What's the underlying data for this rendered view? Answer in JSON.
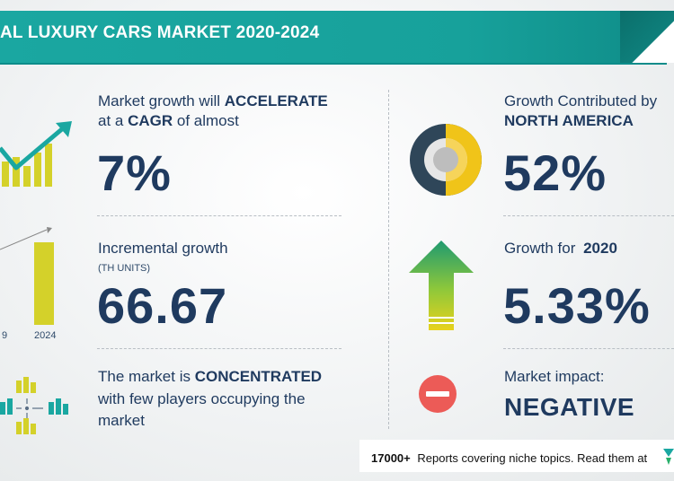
{
  "header": {
    "title": "AL LUXURY CARS MARKET 2020-2024"
  },
  "growth": {
    "line1_text": "Market growth will",
    "line1_emphasis": "ACCELERATE",
    "line2_text": "at a",
    "line2_emphasis": "CAGR",
    "line2_suffix": "of almost",
    "value": "7%"
  },
  "incremental": {
    "label": "Incremental growth",
    "unit": "(TH UNITS)",
    "value": "66.67",
    "axis_labels": [
      "9",
      "2024"
    ]
  },
  "concentration": {
    "line1_text": "The market is",
    "line1_emphasis": "CONCENTRATED",
    "line2": "with few players occupying the",
    "line3": "market"
  },
  "region": {
    "line1": "Growth Contributed by",
    "region_name": "NORTH AMERICA",
    "value": "52%"
  },
  "yoy": {
    "label": "Growth for",
    "year": "2020",
    "value": "5.33%"
  },
  "impact": {
    "label": "Market impact:",
    "value": "NEGATIVE"
  },
  "footer": {
    "count": "17000+",
    "text": "Reports covering niche topics. Read them at"
  },
  "icons": {
    "trend": "trend-chart-icon",
    "bar": "bar-chart-icon",
    "network": "market-network-icon",
    "donut": "donut-chart-icon",
    "arrow": "up-arrow-icon",
    "minus": "minus-circle-icon"
  },
  "colors": {
    "banner": "#17a19b",
    "text": "#1f3a5f",
    "accent_yellow": "#e6c81a",
    "accent_green": "#28b06a",
    "negative_red": "#ec5b57"
  }
}
